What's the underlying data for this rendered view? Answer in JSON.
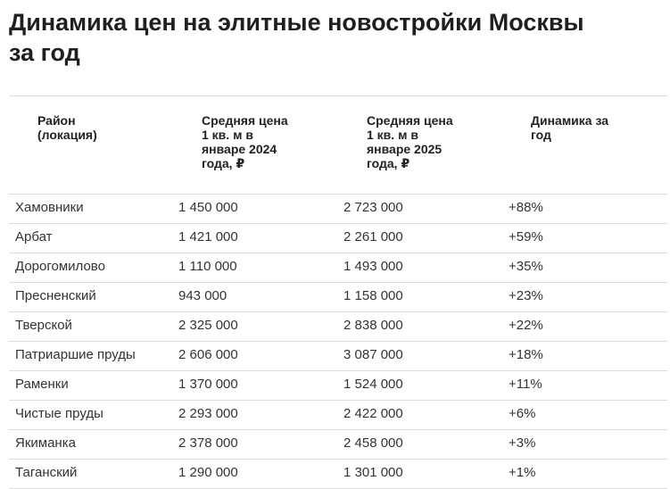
{
  "title": [
    "Динамика цен на элитные новостройки Москвы",
    "за год"
  ],
  "table": {
    "header": [
      [
        "Район",
        "(локация)"
      ],
      [
        "Средняя цена",
        "1 кв. м в",
        "январе 2024",
        "года, ₽"
      ],
      [
        "Средняя цена",
        "1 кв. м в",
        "январе 2025",
        "года, ₽"
      ],
      [
        "Динамика за",
        "год"
      ]
    ],
    "rows": [
      [
        "Хамовники",
        "1 450 000",
        "2 723 000",
        "+88%"
      ],
      [
        "Арбат",
        "1 421 000",
        "2 261 000",
        "+59%"
      ],
      [
        "Дорогомилово",
        "1 110 000",
        "1 493 000",
        "+35%"
      ],
      [
        "Пресненский",
        "943 000",
        "1 158 000",
        "+23%"
      ],
      [
        "Тверской",
        "2 325 000",
        "2 838 000",
        "+22%"
      ],
      [
        "Патриаршие пруды",
        "2 606 000",
        "3 087 000",
        "+18%"
      ],
      [
        "Раменки",
        "1 370 000",
        "1 524 000",
        "+11%"
      ],
      [
        "Чистые пруды",
        "2 293 000",
        "2 422 000",
        "+6%"
      ],
      [
        "Якиманка",
        "2 378 000",
        "2 458 000",
        "+3%"
      ],
      [
        "Таганский",
        "1 290 000",
        "1 301 000",
        "+1%"
      ]
    ]
  }
}
